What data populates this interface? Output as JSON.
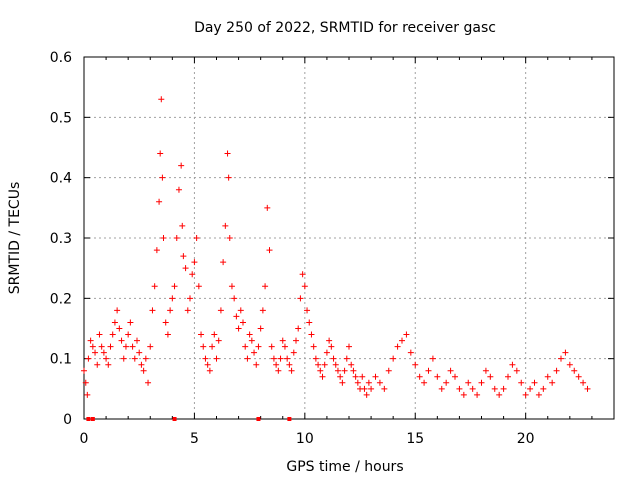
{
  "chart_data": {
    "type": "scatter",
    "title": "Day 250 of 2022, SRMTID for receiver gasc",
    "xlabel": "GPS time / hours",
    "ylabel": "SRMTID / TECUs",
    "xlim": [
      0,
      24
    ],
    "ylim": [
      0,
      0.6
    ],
    "x_ticks": [
      0,
      5,
      10,
      15,
      20
    ],
    "x_tick_labels": [
      "0",
      "5",
      "10",
      "15",
      "20"
    ],
    "y_ticks": [
      0,
      0.1,
      0.2,
      0.3,
      0.4,
      0.5,
      0.6
    ],
    "y_tick_labels": [
      "0",
      "0.1",
      "0.2",
      "0.3",
      "0.4",
      "0.5",
      "0.6"
    ],
    "grid": true,
    "marker": "+",
    "series": [
      {
        "name": "SRMTID",
        "color": "#ff0000",
        "x": [
          0.0,
          0.08,
          0.15,
          0.2,
          0.3,
          0.4,
          0.5,
          0.6,
          0.7,
          0.8,
          0.9,
          1.0,
          1.1,
          1.2,
          1.3,
          1.4,
          1.5,
          1.6,
          1.7,
          1.8,
          1.9,
          2.0,
          2.1,
          2.2,
          2.3,
          2.4,
          2.5,
          2.6,
          2.7,
          2.8,
          2.9,
          3.0,
          3.1,
          3.2,
          3.3,
          3.4,
          3.45,
          3.5,
          3.55,
          3.6,
          3.7,
          3.8,
          3.9,
          4.0,
          4.1,
          4.2,
          4.3,
          4.4,
          4.45,
          4.5,
          4.6,
          4.7,
          4.8,
          4.9,
          5.0,
          5.1,
          5.2,
          5.3,
          5.4,
          5.5,
          5.6,
          5.7,
          5.8,
          5.9,
          6.0,
          6.1,
          6.2,
          6.3,
          6.4,
          6.5,
          6.55,
          6.6,
          6.7,
          6.8,
          6.9,
          7.0,
          7.1,
          7.2,
          7.3,
          7.4,
          7.5,
          7.6,
          7.7,
          7.8,
          7.9,
          8.0,
          8.1,
          8.2,
          8.3,
          8.4,
          8.5,
          8.6,
          8.7,
          8.8,
          8.9,
          9.0,
          9.1,
          9.2,
          9.3,
          9.4,
          9.5,
          9.6,
          9.7,
          9.8,
          9.9,
          10.0,
          10.1,
          10.2,
          10.3,
          10.4,
          10.5,
          10.6,
          10.7,
          10.8,
          10.9,
          11.0,
          11.1,
          11.2,
          11.3,
          11.4,
          11.5,
          11.6,
          11.7,
          11.8,
          11.9,
          12.0,
          12.1,
          12.2,
          12.3,
          12.4,
          12.5,
          12.6,
          12.7,
          12.8,
          12.9,
          13.0,
          13.2,
          13.4,
          13.6,
          13.8,
          14.0,
          14.2,
          14.4,
          14.6,
          14.8,
          15.0,
          15.2,
          15.4,
          15.6,
          15.8,
          16.0,
          16.2,
          16.4,
          16.6,
          16.8,
          17.0,
          17.2,
          17.4,
          17.6,
          17.8,
          18.0,
          18.2,
          18.4,
          18.6,
          18.8,
          19.0,
          19.2,
          19.4,
          19.6,
          19.8,
          20.0,
          20.2,
          20.4,
          20.6,
          20.8,
          21.0,
          21.2,
          21.4,
          21.6,
          21.8,
          22.0,
          22.2,
          22.4,
          22.6,
          22.8
        ],
        "y": [
          0.08,
          0.06,
          0.04,
          0.1,
          0.13,
          0.12,
          0.11,
          0.09,
          0.14,
          0.12,
          0.11,
          0.1,
          0.09,
          0.12,
          0.14,
          0.16,
          0.18,
          0.15,
          0.13,
          0.1,
          0.12,
          0.14,
          0.16,
          0.12,
          0.1,
          0.13,
          0.11,
          0.09,
          0.08,
          0.1,
          0.06,
          0.12,
          0.18,
          0.22,
          0.28,
          0.36,
          0.44,
          0.53,
          0.4,
          0.3,
          0.16,
          0.14,
          0.18,
          0.2,
          0.22,
          0.3,
          0.38,
          0.42,
          0.32,
          0.27,
          0.25,
          0.18,
          0.2,
          0.24,
          0.26,
          0.3,
          0.22,
          0.14,
          0.12,
          0.1,
          0.09,
          0.08,
          0.12,
          0.14,
          0.1,
          0.13,
          0.18,
          0.26,
          0.32,
          0.44,
          0.4,
          0.3,
          0.22,
          0.2,
          0.17,
          0.15,
          0.18,
          0.16,
          0.12,
          0.1,
          0.14,
          0.13,
          0.11,
          0.09,
          0.12,
          0.15,
          0.18,
          0.22,
          0.35,
          0.28,
          0.12,
          0.1,
          0.09,
          0.08,
          0.1,
          0.13,
          0.12,
          0.1,
          0.09,
          0.08,
          0.11,
          0.13,
          0.15,
          0.2,
          0.24,
          0.22,
          0.18,
          0.16,
          0.14,
          0.12,
          0.1,
          0.09,
          0.08,
          0.07,
          0.09,
          0.11,
          0.13,
          0.12,
          0.1,
          0.09,
          0.08,
          0.07,
          0.06,
          0.08,
          0.1,
          0.12,
          0.09,
          0.08,
          0.07,
          0.06,
          0.05,
          0.07,
          0.05,
          0.04,
          0.06,
          0.05,
          0.07,
          0.06,
          0.05,
          0.08,
          0.1,
          0.12,
          0.13,
          0.14,
          0.11,
          0.09,
          0.07,
          0.06,
          0.08,
          0.1,
          0.07,
          0.05,
          0.06,
          0.08,
          0.07,
          0.05,
          0.04,
          0.06,
          0.05,
          0.04,
          0.06,
          0.08,
          0.07,
          0.05,
          0.04,
          0.05,
          0.07,
          0.09,
          0.08,
          0.06,
          0.04,
          0.05,
          0.06,
          0.04,
          0.05,
          0.07,
          0.06,
          0.08,
          0.1,
          0.11,
          0.09,
          0.08,
          0.07,
          0.06,
          0.05
        ]
      }
    ],
    "baseline_markers_x": [
      0.2,
      0.4,
      4.1,
      7.9,
      9.3
    ]
  }
}
